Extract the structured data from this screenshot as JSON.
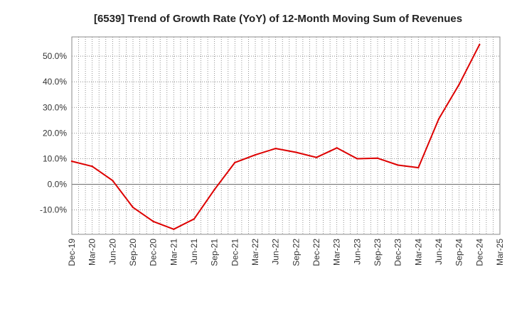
{
  "chart_data": {
    "type": "line",
    "title": "[6539]  Trend of Growth Rate (YoY) of 12-Month Moving Sum of Revenues",
    "xlabel": "",
    "ylabel": "",
    "x_ticks": [
      "Dec-19",
      "Mar-20",
      "Jun-20",
      "Sep-20",
      "Dec-20",
      "Mar-21",
      "Jun-21",
      "Sep-21",
      "Dec-21",
      "Mar-22",
      "Jun-22",
      "Sep-22",
      "Dec-22",
      "Mar-23",
      "Jun-23",
      "Sep-23",
      "Dec-23",
      "Mar-24",
      "Jun-24",
      "Sep-24",
      "Dec-24",
      "Mar-25"
    ],
    "y_ticks": [
      {
        "value": -10,
        "label": "-10.0%"
      },
      {
        "value": 0,
        "label": "0.0%"
      },
      {
        "value": 10,
        "label": "10.0%"
      },
      {
        "value": 20,
        "label": "20.0%"
      },
      {
        "value": 30,
        "label": "30.0%"
      },
      {
        "value": 40,
        "label": "40.0%"
      },
      {
        "value": 50,
        "label": "50.0%"
      }
    ],
    "ylim": [
      -19.5,
      57.5
    ],
    "grid": true,
    "series": [
      {
        "color": "#dd0000",
        "x": [
          "Dec-19",
          "Mar-20",
          "Jun-20",
          "Sep-20",
          "Dec-20",
          "Mar-21",
          "Jun-21",
          "Sep-21",
          "Dec-21",
          "Mar-22",
          "Jun-22",
          "Sep-22",
          "Dec-22",
          "Mar-23",
          "Jun-23",
          "Sep-23",
          "Dec-23",
          "Mar-24",
          "Jun-24",
          "Sep-24",
          "Dec-24"
        ],
        "values": [
          9.0,
          7.0,
          1.5,
          -9.0,
          -14.5,
          -17.5,
          -13.5,
          -2.0,
          8.5,
          11.5,
          14.0,
          12.5,
          10.5,
          14.2,
          10.0,
          10.2,
          7.5,
          6.5,
          25.5,
          39.0,
          54.5
        ]
      }
    ]
  }
}
